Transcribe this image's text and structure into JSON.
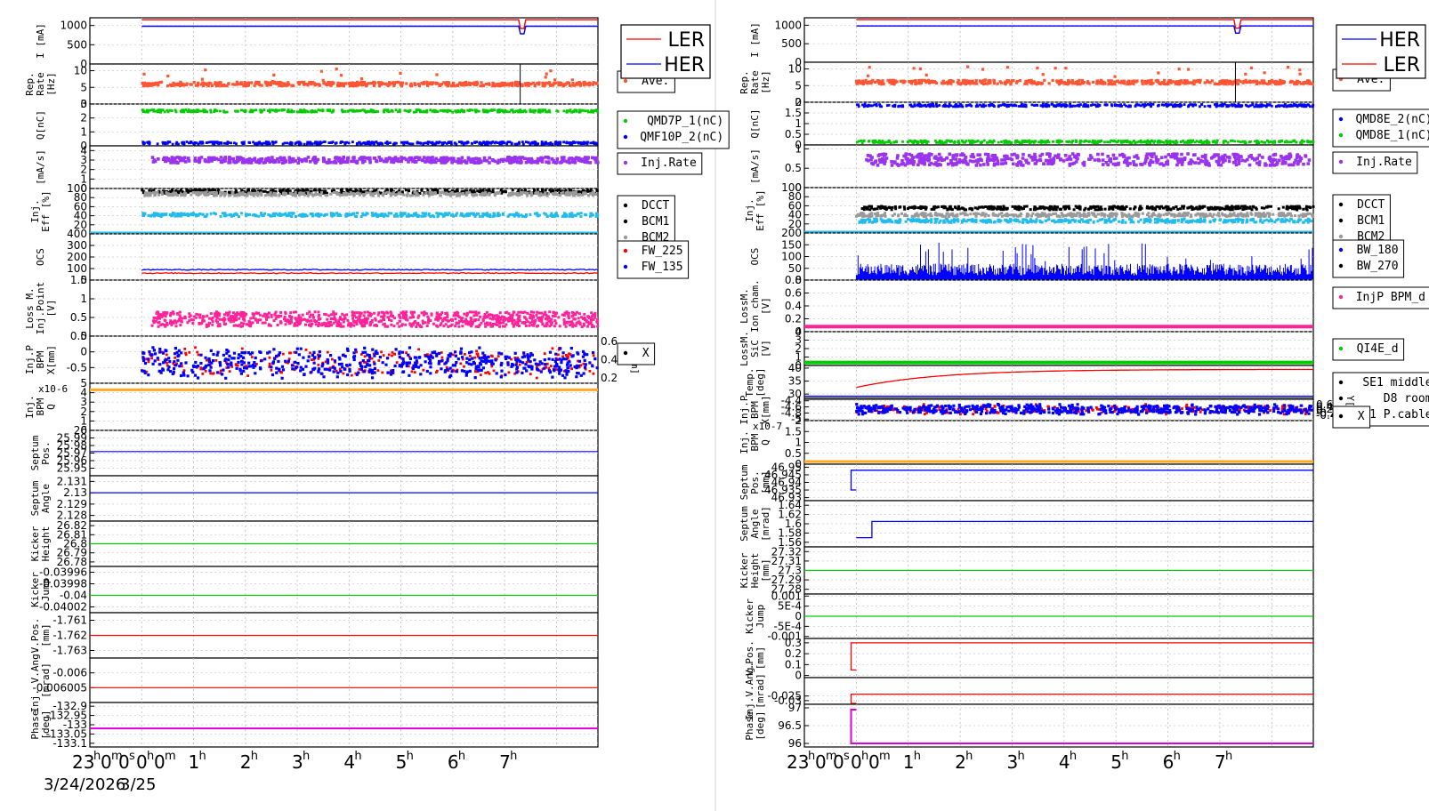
{
  "colors": {
    "red": "#ff0000",
    "blue": "#0000ff",
    "orange_red": "#ff5533",
    "green": "#00cc00",
    "purple": "#9933ee",
    "cyan": "#22bbee",
    "black": "#000000",
    "gray": "#999999",
    "magenta_pink": "#ff2299",
    "orange": "#ffaa22",
    "purple_line": "#dd00dd"
  },
  "chart_data": [
    {
      "type": "line",
      "panel": "left",
      "x_ticks": [
        "23h00m00s",
        "0h",
        "1h",
        "2h",
        "3h",
        "4h",
        "5h",
        "6h",
        "7h"
      ],
      "x_tick_main": [
        {
          "h": "23",
          "s": "h"
        },
        {
          "h": "0",
          "s": "m"
        },
        {
          "h": "0",
          "s": "s"
        },
        {
          "h": "0",
          "s": "h"
        },
        {
          "h": "0",
          "s": "m"
        }
      ],
      "x_hour_labels": [
        "1",
        "2",
        "3",
        "4",
        "5",
        "6",
        "7"
      ],
      "date_labels": [
        "3/24/2026",
        "3/25"
      ],
      "x_range_hours": [
        -1,
        8.8
      ],
      "legend_main": [
        "LER",
        "HER"
      ],
      "rows": [
        {
          "ylabel": [
            "I [mA]"
          ],
          "ticks": [
            "1000",
            "500",
            "0"
          ],
          "yrange": [
            0,
            1200
          ],
          "legend": []
        },
        {
          "ylabel": [
            "Rep.",
            "Rate",
            "[Hz]"
          ],
          "ticks": [
            "10",
            "5",
            "0"
          ],
          "yrange": [
            0,
            12
          ],
          "legend": [
            "Ave."
          ]
        },
        {
          "ylabel": [
            "Q[nC]"
          ],
          "ticks": [
            "3",
            "2",
            "1",
            "0"
          ],
          "yrange": [
            0,
            3
          ],
          "legend": [
            "QMD7P_1(nC)",
            "QMF10P_2(nC)"
          ]
        },
        {
          "ylabel": [
            "[mA/s]"
          ],
          "ticks": [
            "4",
            "3",
            "2",
            "1",
            "0"
          ],
          "yrange": [
            0,
            4.5
          ],
          "legend": [
            "Inj.Rate"
          ]
        },
        {
          "ylabel": [
            "Inj.",
            "Eff [%]"
          ],
          "ticks": [
            "100",
            "80",
            "60",
            "40",
            "20"
          ],
          "yrange": [
            0,
            100
          ],
          "legend": [
            "DCCT",
            "BCM1",
            "BCM2"
          ]
        },
        {
          "ylabel": [
            "OCS"
          ],
          "ticks": [
            "400",
            "300",
            "200",
            "100",
            "0"
          ],
          "yrange": [
            0,
            400
          ],
          "legend": [
            "FW_225",
            "FW_135"
          ]
        },
        {
          "ylabel": [
            "Loss M.",
            "Inj.Point",
            "[V]"
          ],
          "ticks": [
            "1.5",
            "1",
            "0.5",
            "0"
          ],
          "yrange": [
            0,
            1.5
          ],
          "legend": []
        },
        {
          "ylabel": [
            "Inj.P",
            "BPM",
            "X[mm]"
          ],
          "ticks": [
            "0.5",
            "0",
            "-0.5"
          ],
          "yrange": [
            -1,
            0.5
          ],
          "legend": [
            "X"
          ],
          "right_ticks": [
            "0.6",
            "0.4",
            "0.2"
          ],
          "right_label": "Y[mm]"
        },
        {
          "ylabel": [
            "Inj.",
            "BPM",
            "Q"
          ],
          "ticks": [
            "5",
            "4",
            "3",
            "2",
            "1",
            "0"
          ],
          "yrange": [
            0,
            5
          ],
          "legend": [],
          "exp": "x10-6"
        },
        {
          "ylabel": [
            "Septum",
            "Pos."
          ],
          "ticks": [
            "26",
            "25.99",
            "25.98",
            "25.97",
            "25.96",
            "25.95"
          ],
          "yrange": [
            25.94,
            26
          ],
          "legend": []
        },
        {
          "ylabel": [
            "Septum",
            "Angle"
          ],
          "ticks": [
            "2.131",
            "2.13",
            "2.129",
            "2.128"
          ],
          "yrange": [
            2.1275,
            2.1315
          ],
          "legend": []
        },
        {
          "ylabel": [
            "Kicker",
            "Height"
          ],
          "ticks": [
            "26.82",
            "26.81",
            "26.8",
            "26.79",
            "26.78"
          ],
          "yrange": [
            26.775,
            26.825
          ],
          "legend": []
        },
        {
          "ylabel": [
            "Kicker",
            "Jump"
          ],
          "ticks": [
            "-0.03996",
            "-0.03998",
            "-0.04",
            "-0.04002"
          ],
          "yrange": [
            -0.04003,
            -0.03995
          ],
          "legend": []
        },
        {
          "ylabel": [
            "V.Pos.",
            "[mm]"
          ],
          "ticks": [
            "-1.761",
            "-1.762",
            "-1.763"
          ],
          "yrange": [
            -1.7635,
            -1.7605
          ],
          "legend": []
        },
        {
          "ylabel": [
            "Inj. V.Ang.",
            "[mrad]"
          ],
          "ticks": [
            "-0.006",
            "-0.006005"
          ],
          "yrange": [
            -0.00601,
            -0.005995
          ],
          "legend": []
        },
        {
          "ylabel": [
            "Phase",
            "[deg]"
          ],
          "ticks": [
            "-132.9",
            "-132.95",
            "-133",
            "-133.05",
            "-133.1"
          ],
          "yrange": [
            -133.12,
            -132.88
          ],
          "legend": []
        }
      ]
    },
    {
      "type": "line",
      "panel": "right",
      "x_ticks": [
        "23h00m00s",
        "0h",
        "1h",
        "2h",
        "3h",
        "4h",
        "5h",
        "6h",
        "7h"
      ],
      "x_tick_main": [
        {
          "h": "23",
          "s": "h"
        },
        {
          "h": "0",
          "s": "m"
        },
        {
          "h": "0",
          "s": "s"
        },
        {
          "h": "0",
          "s": "h"
        },
        {
          "h": "0",
          "s": "m"
        }
      ],
      "x_hour_labels": [
        "1",
        "2",
        "3",
        "4",
        "5",
        "6",
        "7"
      ],
      "x_range_hours": [
        -1,
        8.8
      ],
      "legend_main": [
        "HER",
        "LER"
      ],
      "rows": [
        {
          "ylabel": [
            "I [mA]"
          ],
          "ticks": [
            "1000",
            "500",
            "0"
          ],
          "yrange": [
            0,
            1200
          ],
          "legend": []
        },
        {
          "ylabel": [
            "Rep.",
            "Rate",
            "[Hz]"
          ],
          "ticks": [
            "10",
            "5",
            "0"
          ],
          "yrange": [
            0,
            12
          ],
          "legend": [
            "Ave."
          ]
        },
        {
          "ylabel": [
            "Q[nC]"
          ],
          "ticks": [
            "2",
            "1.5",
            "1",
            "0.5",
            "0"
          ],
          "yrange": [
            0,
            2
          ],
          "legend": [
            "QMD8E_2(nC)",
            "QMD8E_1(nC)"
          ]
        },
        {
          "ylabel": [
            "[mA/s]"
          ],
          "ticks": [
            "1",
            "0.5",
            "0"
          ],
          "yrange": [
            0,
            1.1
          ],
          "legend": [
            "Inj.Rate"
          ]
        },
        {
          "ylabel": [
            "Inj.",
            "Eff [%]"
          ],
          "ticks": [
            "100",
            "80",
            "60",
            "40",
            "20"
          ],
          "yrange": [
            0,
            100
          ],
          "legend": [
            "DCCT",
            "BCM1",
            "BCM2"
          ]
        },
        {
          "ylabel": [
            "OCS"
          ],
          "ticks": [
            "200",
            "150",
            "100",
            "50",
            "0"
          ],
          "yrange": [
            0,
            200
          ],
          "legend": [
            "BW_180",
            "BW_270"
          ]
        },
        {
          "ylabel": [
            "LossM.",
            "Ion cham.",
            "[V]"
          ],
          "ticks": [
            "0.8",
            "0.6",
            "0.4",
            "0.2",
            "0"
          ],
          "yrange": [
            0,
            0.8
          ],
          "legend": [
            "InjP BPM_d"
          ]
        },
        {
          "ylabel": [
            "LossM.",
            "SiC",
            "[V]"
          ],
          "ticks": [
            "4",
            "3",
            "2",
            "1",
            "0"
          ],
          "yrange": [
            0,
            4
          ],
          "legend": [
            "QI4E_d"
          ]
        },
        {
          "ylabel": [
            "Temp.",
            "[deg]"
          ],
          "ticks": [
            "40",
            "35",
            "30"
          ],
          "yrange": [
            28,
            41
          ],
          "legend": [
            "SE1 middle",
            "D8 room",
            "SE1 P.cable"
          ]
        },
        {
          "ylabel": [
            "Inj.P",
            "BPM",
            "X[mm]"
          ],
          "ticks": [
            "-4.4",
            "-4.6",
            "-4.8",
            "-5"
          ],
          "yrange": [
            -5.05,
            -4.35
          ],
          "legend": [
            "X"
          ],
          "right_ticks": [
            "0.6",
            "0.4",
            "0.2",
            "0",
            "-0.2",
            "-0.4"
          ],
          "right_label": "Y[mm]"
        },
        {
          "ylabel": [
            "Inj.",
            "BPM",
            "Q"
          ],
          "ticks": [
            "2",
            "1.5",
            "1",
            "0.5",
            "0"
          ],
          "yrange": [
            0,
            2
          ],
          "legend": [],
          "exp": "x10-7"
        },
        {
          "ylabel": [
            "Septum",
            "Pos.",
            "[mm]"
          ],
          "ticks": [
            "46.95",
            "46.945",
            "46.94",
            "46.935",
            "46.93"
          ],
          "yrange": [
            46.928,
            46.952
          ],
          "legend": []
        },
        {
          "ylabel": [
            "Septum",
            "Angle",
            "[mrad]"
          ],
          "ticks": [
            "1.64",
            "1.62",
            "1.6",
            "1.58",
            "1.56"
          ],
          "yrange": [
            1.55,
            1.65
          ],
          "legend": []
        },
        {
          "ylabel": [
            "Kicker",
            "Height",
            "[mm]"
          ],
          "ticks": [
            "27.32",
            "27.31",
            "27.3",
            "27.29",
            "27.28"
          ],
          "yrange": [
            27.275,
            27.325
          ],
          "legend": []
        },
        {
          "ylabel": [
            "Kicker",
            "Jump"
          ],
          "ticks": [
            "0.001",
            "5E-4",
            "0",
            "-5E-4",
            "-0.001"
          ],
          "yrange": [
            -0.0011,
            0.0011
          ],
          "legend": []
        },
        {
          "ylabel": [
            "V.Pos.",
            "[mm]"
          ],
          "ticks": [
            "0.3",
            "0.2",
            "0.1",
            "0"
          ],
          "yrange": [
            -0.02,
            0.34
          ],
          "legend": []
        },
        {
          "ylabel": [
            "Inj.V.Ang.",
            "[mrad]"
          ],
          "ticks": [
            "-0.025",
            "-0.03"
          ],
          "yrange": [
            -0.034,
            -0.005
          ],
          "legend": []
        },
        {
          "ylabel": [
            "Phase",
            "[deg]"
          ],
          "ticks": [
            "97",
            "96.5",
            "96"
          ],
          "yrange": [
            95.9,
            97.1
          ],
          "legend": []
        }
      ]
    }
  ]
}
